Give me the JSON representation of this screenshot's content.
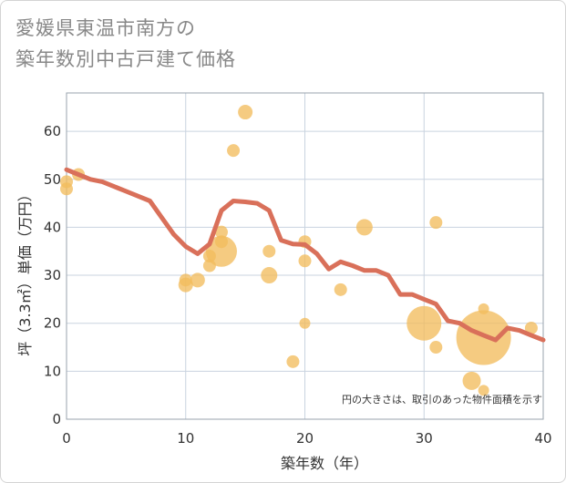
{
  "title": {
    "line1": "愛媛県東温市南方の",
    "line2": "築年数別中古戸建て価格"
  },
  "note": "円の大きさは、取引のあった物件面積を示す",
  "colors": {
    "line": "#d9705a",
    "bubble": "#f2bd5e",
    "grid": "#c9d3df",
    "plot_border": "#9aa3ad"
  },
  "chart_data": {
    "type": "scatter",
    "xlabel": "築年数（年）",
    "ylabel": "坪（3.3㎡）単価（万円）",
    "xlim": [
      0,
      40
    ],
    "ylim": [
      0,
      68
    ],
    "xticks": [
      0,
      10,
      20,
      30,
      40
    ],
    "yticks": [
      0,
      10,
      20,
      30,
      40,
      50,
      60
    ],
    "grid": true,
    "bubbles": [
      {
        "x": 0,
        "y": 48,
        "r": 7
      },
      {
        "x": 0,
        "y": 49.5,
        "r": 7
      },
      {
        "x": 1,
        "y": 51,
        "r": 7
      },
      {
        "x": 10,
        "y": 28,
        "r": 8
      },
      {
        "x": 10,
        "y": 29,
        "r": 7
      },
      {
        "x": 11,
        "y": 29,
        "r": 8
      },
      {
        "x": 12,
        "y": 32,
        "r": 7
      },
      {
        "x": 12,
        "y": 34,
        "r": 7
      },
      {
        "x": 13,
        "y": 35,
        "r": 17
      },
      {
        "x": 13,
        "y": 37,
        "r": 7
      },
      {
        "x": 13,
        "y": 39,
        "r": 7
      },
      {
        "x": 14,
        "y": 56,
        "r": 7
      },
      {
        "x": 15,
        "y": 64,
        "r": 8
      },
      {
        "x": 17,
        "y": 30,
        "r": 9
      },
      {
        "x": 17,
        "y": 35,
        "r": 7
      },
      {
        "x": 19,
        "y": 12,
        "r": 7
      },
      {
        "x": 20,
        "y": 20,
        "r": 6
      },
      {
        "x": 20,
        "y": 33,
        "r": 7
      },
      {
        "x": 20,
        "y": 37,
        "r": 7
      },
      {
        "x": 23,
        "y": 27,
        "r": 7
      },
      {
        "x": 25,
        "y": 40,
        "r": 9
      },
      {
        "x": 30,
        "y": 20,
        "r": 19
      },
      {
        "x": 31,
        "y": 15,
        "r": 7
      },
      {
        "x": 31,
        "y": 41,
        "r": 7
      },
      {
        "x": 34,
        "y": 8,
        "r": 10
      },
      {
        "x": 35,
        "y": 6,
        "r": 6
      },
      {
        "x": 35,
        "y": 23,
        "r": 6
      },
      {
        "x": 35,
        "y": 17,
        "r": 30
      },
      {
        "x": 39,
        "y": 19,
        "r": 7
      }
    ],
    "line": {
      "x": [
        0,
        1,
        2,
        3,
        4,
        5,
        6,
        7,
        8,
        9,
        10,
        11,
        12,
        13,
        14,
        15,
        16,
        17,
        18,
        19,
        20,
        21,
        22,
        23,
        24,
        25,
        26,
        27,
        28,
        29,
        30,
        31,
        32,
        33,
        34,
        35,
        36,
        37,
        38,
        39,
        40
      ],
      "y": [
        52,
        51,
        50,
        49.5,
        48.5,
        47.5,
        46.5,
        45.5,
        42,
        38.5,
        36,
        34.5,
        36.5,
        43.5,
        45.5,
        45.3,
        45,
        43.5,
        37.3,
        36.5,
        36.4,
        34.5,
        31.3,
        32.8,
        32,
        31,
        31,
        30,
        26,
        26,
        25,
        24,
        20.5,
        20,
        18.5,
        17.5,
        16.5,
        19,
        18.5,
        17.5,
        16.5
      ]
    }
  }
}
